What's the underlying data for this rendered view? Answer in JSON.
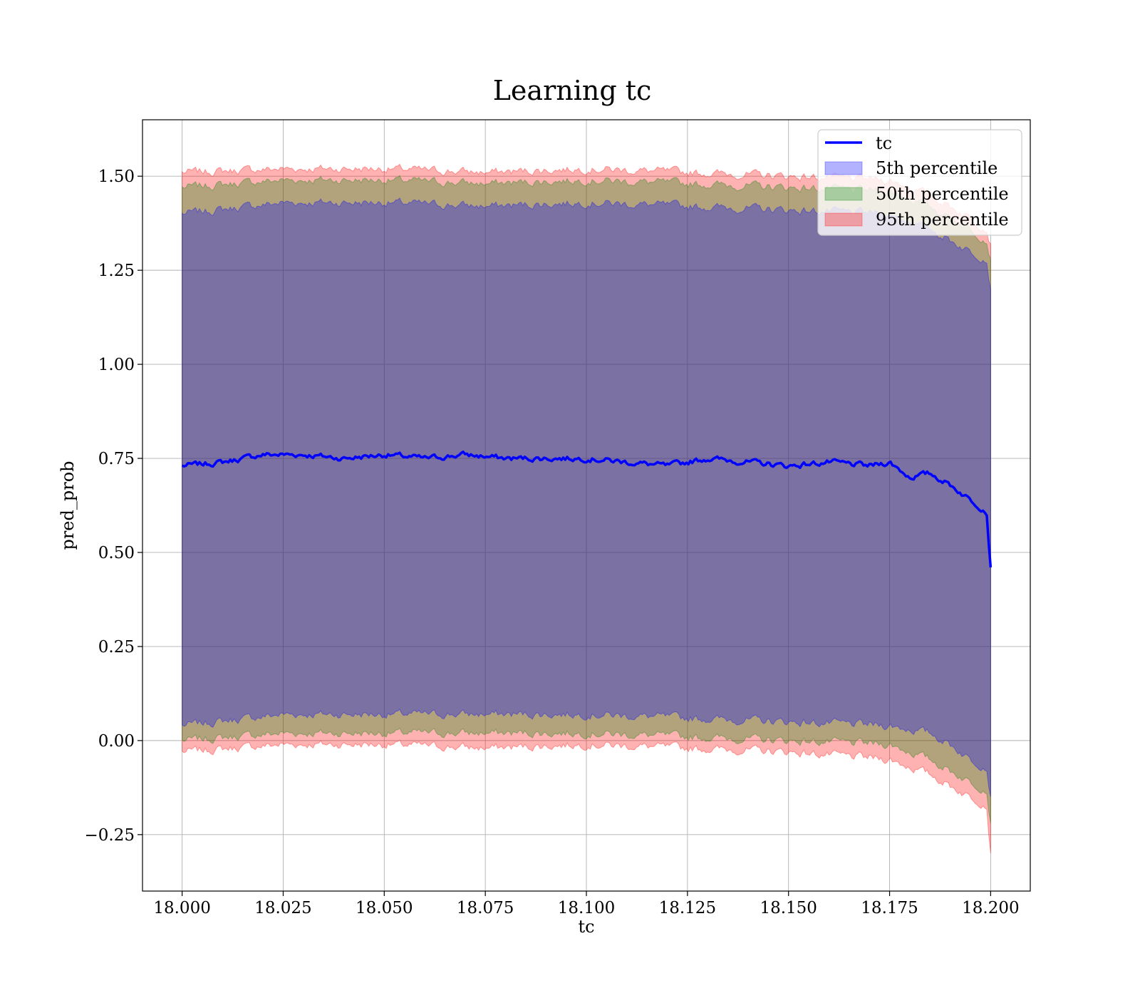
{
  "chart_data": {
    "type": "area",
    "title": "Learning tc",
    "xlabel": "tc",
    "ylabel": "pred_prob",
    "xlim": [
      17.9902,
      18.2098
    ],
    "ylim": [
      -0.4,
      1.65
    ],
    "x_ticks": [
      18.0,
      18.025,
      18.05,
      18.075,
      18.1,
      18.125,
      18.15,
      18.175,
      18.2
    ],
    "x_tick_labels": [
      "18.000",
      "18.025",
      "18.050",
      "18.075",
      "18.100",
      "18.125",
      "18.150",
      "18.175",
      "18.200"
    ],
    "y_ticks": [
      -0.25,
      0.0,
      0.25,
      0.5,
      0.75,
      1.0,
      1.25,
      1.5
    ],
    "y_tick_labels": [
      "−0.25",
      "0.00",
      "0.25",
      "0.50",
      "0.75",
      "1.00",
      "1.25",
      "1.50"
    ],
    "grid": true,
    "legend_position": "top-right",
    "line_series": {
      "name": "tc",
      "color": "#0000ff",
      "x": [
        18.0,
        18.01,
        18.02,
        18.03,
        18.04,
        18.05,
        18.06,
        18.07,
        18.08,
        18.09,
        18.1,
        18.11,
        18.12,
        18.13,
        18.14,
        18.15,
        18.16,
        18.17,
        18.175,
        18.18,
        18.185,
        18.19,
        18.195,
        18.199,
        18.2
      ],
      "y": [
        0.73,
        0.74,
        0.76,
        0.76,
        0.75,
        0.76,
        0.75,
        0.76,
        0.75,
        0.75,
        0.75,
        0.74,
        0.73,
        0.75,
        0.74,
        0.73,
        0.74,
        0.73,
        0.74,
        0.7,
        0.71,
        0.68,
        0.64,
        0.61,
        0.46
      ]
    },
    "band_series": [
      {
        "name": "5th percentile",
        "color": "#0000ff",
        "x": [
          18.0,
          18.025,
          18.05,
          18.075,
          18.1,
          18.125,
          18.15,
          18.175,
          18.18,
          18.185,
          18.19,
          18.195,
          18.199,
          18.2
        ],
        "lower": [
          0.04,
          0.07,
          0.07,
          0.07,
          0.07,
          0.06,
          0.05,
          0.04,
          0.03,
          0.02,
          -0.01,
          -0.05,
          -0.07,
          -0.15
        ],
        "upper": [
          1.4,
          1.43,
          1.43,
          1.42,
          1.43,
          1.42,
          1.41,
          1.4,
          1.38,
          1.36,
          1.33,
          1.3,
          1.28,
          1.2
        ]
      },
      {
        "name": "50th percentile",
        "color": "#008000",
        "x": [
          18.0,
          18.025,
          18.05,
          18.075,
          18.1,
          18.125,
          18.15,
          18.175,
          18.18,
          18.185,
          18.19,
          18.195,
          18.199,
          18.2
        ],
        "lower": [
          0.0,
          0.02,
          0.02,
          0.02,
          0.02,
          0.01,
          0.0,
          -0.01,
          -0.03,
          -0.05,
          -0.08,
          -0.11,
          -0.13,
          -0.22
        ],
        "upper": [
          1.47,
          1.49,
          1.49,
          1.48,
          1.49,
          1.48,
          1.47,
          1.46,
          1.44,
          1.42,
          1.39,
          1.36,
          1.33,
          1.28
        ]
      },
      {
        "name": "95th percentile",
        "color": "#ff0000",
        "x": [
          18.0,
          18.025,
          18.05,
          18.075,
          18.1,
          18.125,
          18.15,
          18.175,
          18.18,
          18.185,
          18.19,
          18.195,
          18.199,
          18.2
        ],
        "lower": [
          -0.03,
          -0.01,
          -0.01,
          -0.02,
          -0.01,
          -0.02,
          -0.03,
          -0.05,
          -0.07,
          -0.09,
          -0.12,
          -0.15,
          -0.17,
          -0.3
        ],
        "upper": [
          1.51,
          1.52,
          1.52,
          1.51,
          1.52,
          1.51,
          1.5,
          1.49,
          1.47,
          1.45,
          1.42,
          1.39,
          1.36,
          1.32
        ]
      }
    ]
  }
}
